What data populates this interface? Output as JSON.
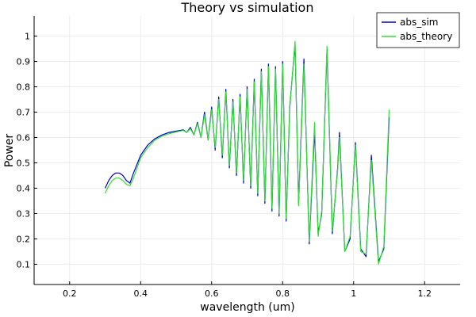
{
  "chart_data": {
    "type": "line",
    "title": "Theory vs simulation",
    "xlabel": "wavelength (um)",
    "ylabel": "Power",
    "xlim": [
      0.1,
      1.3
    ],
    "ylim": [
      0.02,
      1.08
    ],
    "xticks": [
      0.2,
      0.4,
      0.6,
      0.8,
      1.0,
      1.2
    ],
    "xtick_labels": [
      "0.2",
      "0.4",
      "0.6",
      "0.8",
      "1",
      "1.2"
    ],
    "yticks": [
      0.1,
      0.2,
      0.3,
      0.4,
      0.5,
      0.6,
      0.7,
      0.8,
      0.9,
      1.0
    ],
    "ytick_labels": [
      "0.1",
      "0.2",
      "0.3",
      "0.4",
      "0.5",
      "0.6",
      "0.7",
      "0.8",
      "0.9",
      "1"
    ],
    "grid": true,
    "legend_position": "top-right",
    "series": [
      {
        "name": "abs_sim",
        "color": "#0000cc",
        "x": [
          0.3,
          0.31,
          0.32,
          0.33,
          0.34,
          0.35,
          0.36,
          0.37,
          0.38,
          0.4,
          0.42,
          0.44,
          0.46,
          0.48,
          0.5,
          0.52,
          0.53,
          0.54,
          0.55,
          0.56,
          0.57,
          0.58,
          0.59,
          0.6,
          0.61,
          0.62,
          0.63,
          0.64,
          0.65,
          0.66,
          0.67,
          0.68,
          0.69,
          0.7,
          0.71,
          0.72,
          0.73,
          0.74,
          0.75,
          0.76,
          0.77,
          0.78,
          0.79,
          0.8,
          0.81,
          0.82,
          0.835,
          0.845,
          0.86,
          0.875,
          0.89,
          0.9,
          0.91,
          0.925,
          0.94,
          0.955,
          0.96,
          0.975,
          0.99,
          1.005,
          1.02,
          1.035,
          1.05,
          1.07,
          1.085,
          1.1
        ],
        "y": [
          0.4,
          0.43,
          0.45,
          0.46,
          0.46,
          0.45,
          0.43,
          0.42,
          0.46,
          0.53,
          0.57,
          0.595,
          0.61,
          0.62,
          0.625,
          0.63,
          0.62,
          0.64,
          0.61,
          0.66,
          0.6,
          0.7,
          0.59,
          0.72,
          0.55,
          0.76,
          0.52,
          0.79,
          0.48,
          0.75,
          0.45,
          0.77,
          0.42,
          0.8,
          0.4,
          0.83,
          0.37,
          0.87,
          0.34,
          0.89,
          0.31,
          0.88,
          0.29,
          0.9,
          0.27,
          0.72,
          0.97,
          0.34,
          0.91,
          0.18,
          0.63,
          0.22,
          0.3,
          0.95,
          0.22,
          0.48,
          0.62,
          0.15,
          0.2,
          0.58,
          0.16,
          0.13,
          0.53,
          0.11,
          0.16,
          0.68
        ]
      },
      {
        "name": "abs_theory",
        "color": "#33dd33",
        "x": [
          0.3,
          0.31,
          0.32,
          0.33,
          0.34,
          0.35,
          0.36,
          0.37,
          0.38,
          0.4,
          0.42,
          0.44,
          0.46,
          0.48,
          0.5,
          0.52,
          0.53,
          0.54,
          0.55,
          0.56,
          0.57,
          0.58,
          0.59,
          0.6,
          0.61,
          0.62,
          0.63,
          0.64,
          0.65,
          0.66,
          0.67,
          0.68,
          0.69,
          0.7,
          0.71,
          0.72,
          0.73,
          0.74,
          0.75,
          0.76,
          0.77,
          0.78,
          0.79,
          0.8,
          0.81,
          0.82,
          0.835,
          0.845,
          0.86,
          0.875,
          0.89,
          0.9,
          0.91,
          0.925,
          0.94,
          0.955,
          0.96,
          0.975,
          0.99,
          1.005,
          1.02,
          1.035,
          1.05,
          1.07,
          1.085,
          1.1
        ],
        "y": [
          0.38,
          0.41,
          0.43,
          0.44,
          0.44,
          0.43,
          0.415,
          0.41,
          0.44,
          0.52,
          0.56,
          0.59,
          0.605,
          0.615,
          0.622,
          0.628,
          0.62,
          0.635,
          0.61,
          0.655,
          0.6,
          0.69,
          0.59,
          0.71,
          0.56,
          0.75,
          0.53,
          0.78,
          0.49,
          0.74,
          0.46,
          0.76,
          0.43,
          0.79,
          0.41,
          0.82,
          0.38,
          0.86,
          0.35,
          0.88,
          0.32,
          0.87,
          0.3,
          0.89,
          0.28,
          0.71,
          0.98,
          0.33,
          0.89,
          0.19,
          0.66,
          0.21,
          0.31,
          0.96,
          0.23,
          0.47,
          0.6,
          0.15,
          0.21,
          0.57,
          0.15,
          0.14,
          0.51,
          0.1,
          0.17,
          0.71
        ]
      }
    ]
  }
}
